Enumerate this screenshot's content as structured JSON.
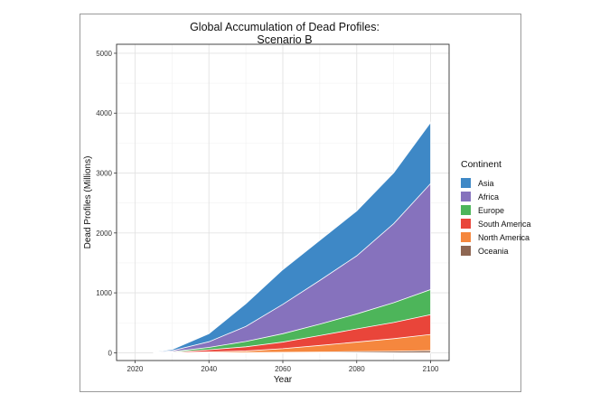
{
  "chart_data": {
    "type": "area",
    "stacked": true,
    "title": "Global Accumulation of Dead Profiles:",
    "subtitle": "Scenario B",
    "xlabel": "Year",
    "ylabel": "Dead Profiles (Millions)",
    "xlim": [
      2015,
      2105
    ],
    "ylim": [
      -130,
      5150
    ],
    "x_ticks": [
      2020,
      2040,
      2060,
      2080,
      2100
    ],
    "y_ticks": [
      0,
      1000,
      2000,
      3000,
      4000,
      5000
    ],
    "grid": true,
    "legend_position": "right",
    "legend_title": "Continent",
    "x": [
      2025,
      2030,
      2040,
      2050,
      2060,
      2070,
      2080,
      2090,
      2100
    ],
    "series": [
      {
        "name": "Asia",
        "color": "#3E88C6",
        "values": [
          6,
          20,
          135,
          380,
          580,
          670,
          750,
          850,
          1020
        ]
      },
      {
        "name": "Africa",
        "color": "#8672BD",
        "values": [
          5,
          15,
          95,
          250,
          490,
          730,
          970,
          1320,
          1770
        ]
      },
      {
        "name": "Europe",
        "color": "#4DB55A",
        "values": [
          3,
          8,
          40,
          90,
          140,
          190,
          250,
          330,
          420
        ]
      },
      {
        "name": "South America",
        "color": "#E9453A",
        "values": [
          2,
          6,
          35,
          70,
          110,
          165,
          220,
          270,
          330
        ]
      },
      {
        "name": "North America",
        "color": "#F5873E",
        "values": [
          1,
          3,
          12,
          25,
          60,
          110,
          160,
          210,
          270
        ]
      },
      {
        "name": "Oceania",
        "color": "#8E6652",
        "values": [
          0,
          1,
          2,
          4,
          8,
          12,
          18,
          25,
          35
        ]
      }
    ]
  }
}
